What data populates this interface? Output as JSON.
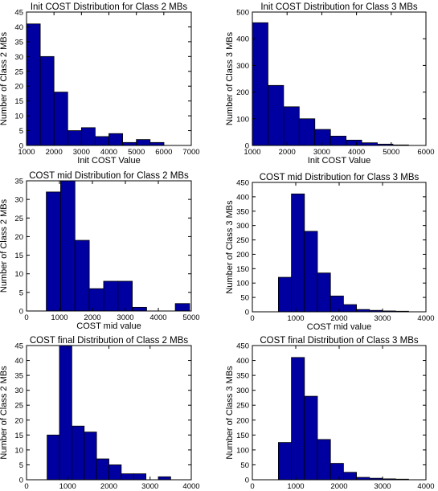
{
  "chart_data": [
    {
      "type": "bar",
      "title": "Init COST Distribution for Class 2 MBs",
      "xlabel": "Init COST Value",
      "ylabel": "Number of Class 2 MBs",
      "xlim": [
        1000,
        7000
      ],
      "ylim": [
        0,
        45
      ],
      "xticks": [
        1000,
        2000,
        3000,
        4000,
        5000,
        6000,
        7000
      ],
      "yticks": [
        0,
        5,
        10,
        15,
        20,
        25,
        30,
        35,
        40,
        45
      ],
      "bin_edges": [
        1000,
        1500,
        2000,
        2500,
        3000,
        3500,
        4000,
        4500,
        5000,
        5500,
        6000,
        6500
      ],
      "values": [
        41,
        30,
        18,
        5,
        6,
        3,
        4,
        1,
        2,
        1,
        0
      ],
      "bar_color": "#0000a0"
    },
    {
      "type": "bar",
      "title": "Init COST Distribution for Class 3 MBs",
      "xlabel": "Init COST Value",
      "ylabel": "Number of Class 3 MBs",
      "xlim": [
        1000,
        6000
      ],
      "ylim": [
        0,
        500
      ],
      "xticks": [
        1000,
        2000,
        3000,
        4000,
        5000,
        6000
      ],
      "yticks": [
        0,
        100,
        200,
        300,
        400,
        500
      ],
      "bin_edges": [
        1000,
        1450,
        1900,
        2350,
        2800,
        3250,
        3700,
        4150,
        4600,
        5050,
        5500
      ],
      "values": [
        460,
        225,
        145,
        100,
        60,
        35,
        20,
        10,
        5,
        2
      ],
      "bar_color": "#0000a0"
    },
    {
      "type": "bar",
      "title": "COST mid Distribution for Class 2 MBs",
      "xlabel": "COST mid value",
      "ylabel": "Number of Class 2 MBs",
      "xlim": [
        0,
        5000
      ],
      "ylim": [
        0,
        35
      ],
      "xticks": [
        0,
        1000,
        2000,
        3000,
        4000,
        5000
      ],
      "yticks": [
        0,
        5,
        10,
        15,
        20,
        25,
        30,
        35
      ],
      "bin_edges": [
        600,
        1035,
        1470,
        1905,
        2340,
        2775,
        3210,
        3645,
        4080,
        4515,
        4950
      ],
      "values": [
        32,
        35,
        19,
        6,
        8,
        8,
        1,
        0,
        0,
        2
      ],
      "bar_color": "#0000a0"
    },
    {
      "type": "bar",
      "title": "COST mid Distribution for Class 3 MBs",
      "xlabel": "COST mid value",
      "ylabel": "Number of Class 3 MBs",
      "xlim": [
        0,
        4000
      ],
      "ylim": [
        0,
        450
      ],
      "xticks": [
        0,
        1000,
        2000,
        3000,
        4000
      ],
      "yticks": [
        0,
        50,
        100,
        150,
        200,
        250,
        300,
        350,
        400,
        450
      ],
      "bin_edges": [
        600,
        900,
        1200,
        1500,
        1800,
        2100,
        2400,
        2700,
        3000,
        3300,
        3600
      ],
      "values": [
        120,
        410,
        280,
        135,
        55,
        25,
        8,
        5,
        3,
        2
      ],
      "bar_color": "#0000a0"
    },
    {
      "type": "bar",
      "title": "COST final Distribution of Class 2 MBs",
      "xlabel": "COST final value",
      "ylabel": "Number of Class 2 MBs",
      "xlim": [
        0,
        4000
      ],
      "ylim": [
        0,
        45
      ],
      "xticks": [
        0,
        1000,
        2000,
        3000,
        4000
      ],
      "yticks": [
        0,
        5,
        10,
        15,
        20,
        25,
        30,
        35,
        40,
        45
      ],
      "bin_edges": [
        500,
        800,
        1100,
        1400,
        1700,
        2000,
        2300,
        2600,
        2900,
        3200,
        3500
      ],
      "values": [
        15,
        45,
        18,
        16,
        7,
        5,
        2,
        2,
        0,
        1
      ],
      "bar_color": "#0000a0"
    },
    {
      "type": "bar",
      "title": "COST final Distribution of Class 3 MBs",
      "xlabel": "COST final value",
      "ylabel": "Number of Class 3 MBs",
      "xlim": [
        0,
        4000
      ],
      "ylim": [
        0,
        450
      ],
      "xticks": [
        0,
        1000,
        2000,
        3000,
        4000
      ],
      "yticks": [
        0,
        50,
        100,
        150,
        200,
        250,
        300,
        350,
        400,
        450
      ],
      "bin_edges": [
        600,
        900,
        1200,
        1500,
        1800,
        2100,
        2400,
        2700,
        3000,
        3300,
        3600
      ],
      "values": [
        125,
        410,
        280,
        135,
        55,
        25,
        8,
        5,
        3,
        2
      ],
      "bar_color": "#0000a0"
    }
  ]
}
